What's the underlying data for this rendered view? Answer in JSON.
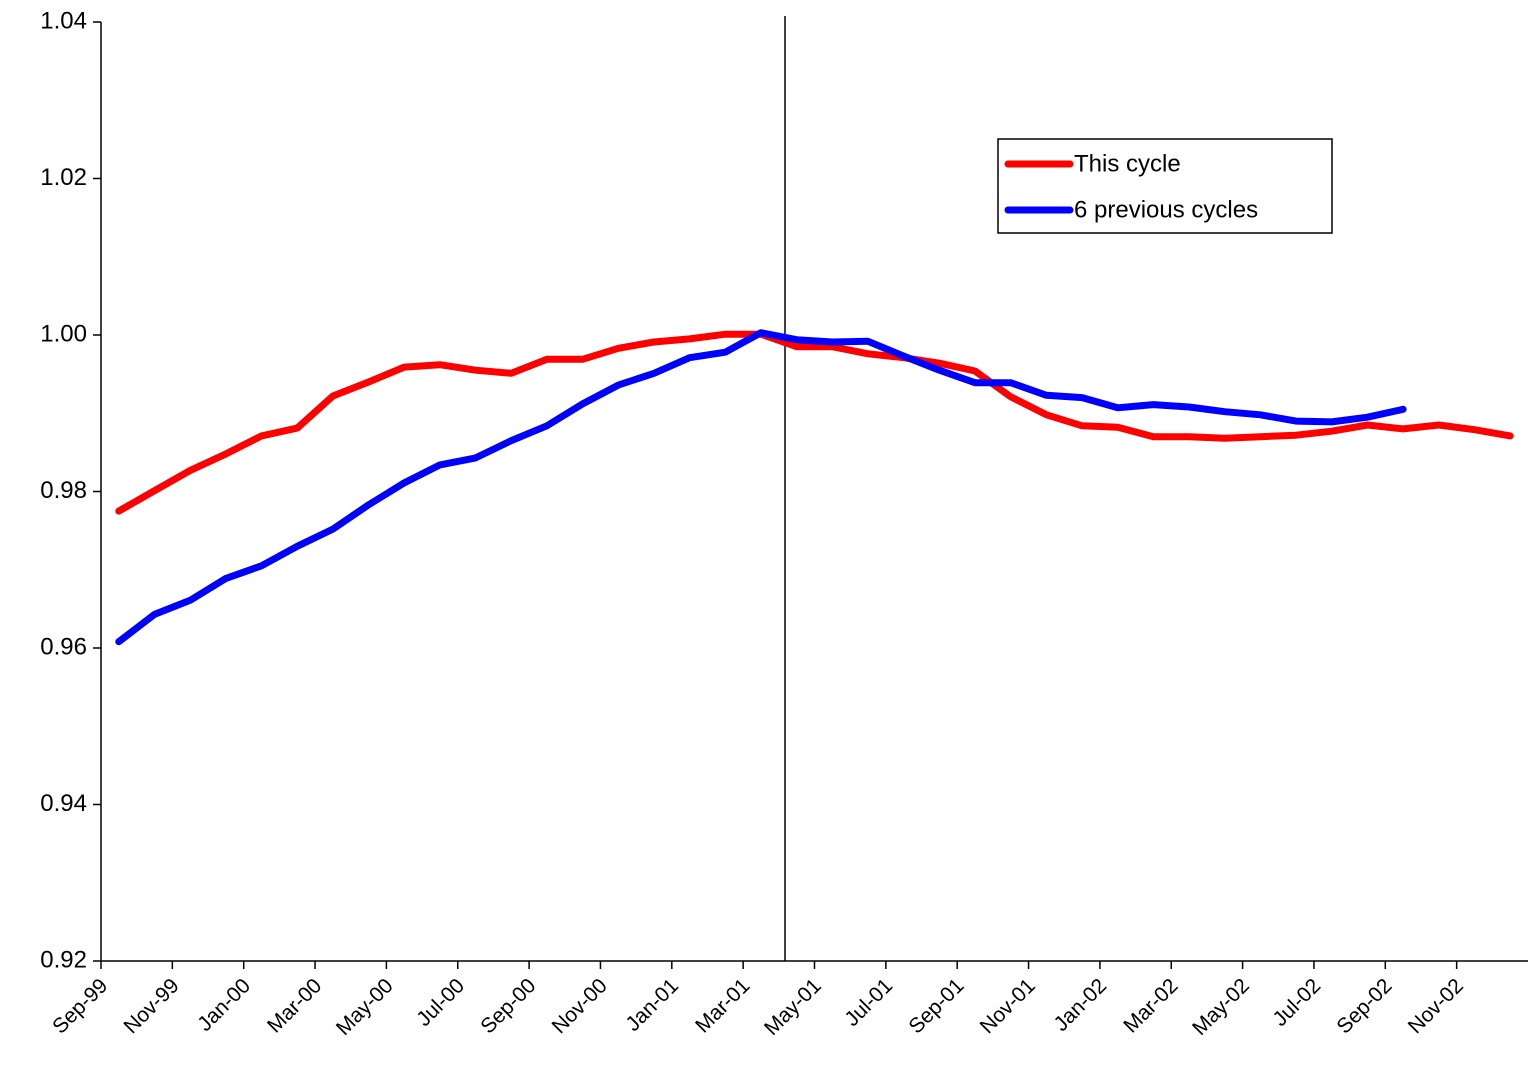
{
  "chart_data": {
    "type": "line",
    "categories": [
      "Sep-99",
      null,
      "Nov-99",
      null,
      "Jan-00",
      null,
      "Mar-00",
      null,
      "May-00",
      null,
      "Jul-00",
      null,
      "Sep-00",
      null,
      "Nov-00",
      null,
      "Jan-01",
      null,
      "Mar-01",
      null,
      "May-01",
      null,
      "Jul-01",
      null,
      "Sep-01",
      null,
      "Nov-01",
      null,
      "Jan-02",
      null,
      "Mar-02",
      null,
      "May-02",
      null,
      "Jul-02",
      null,
      "Sep-02",
      null,
      "Nov-02",
      null
    ],
    "series": [
      {
        "name": "This cycle",
        "color": "#ff0000",
        "values": [
          0.9775,
          0.9801,
          0.9827,
          0.9848,
          0.9871,
          0.9881,
          0.9922,
          0.994,
          0.9959,
          0.9962,
          0.9955,
          0.9951,
          0.9969,
          0.9969,
          0.9983,
          0.9991,
          0.9995,
          1.0001,
          1.0001,
          0.9985,
          0.9985,
          0.9976,
          0.9971,
          0.9964,
          0.9954,
          0.9921,
          0.9898,
          0.9884,
          0.9882,
          0.987,
          0.987,
          0.9868,
          0.987,
          0.9872,
          0.9877,
          0.9885,
          0.988,
          0.9885,
          0.9879,
          0.9871
        ]
      },
      {
        "name": "6 previous cycles",
        "color": "#0000ff",
        "values": [
          0.9608,
          0.9643,
          0.9661,
          0.9689,
          0.9705,
          0.973,
          0.9752,
          0.9783,
          0.9811,
          0.9834,
          0.9843,
          0.9865,
          0.9884,
          0.9912,
          0.9936,
          0.9951,
          0.9971,
          0.9978,
          1.0003,
          0.9994,
          0.9991,
          0.9992,
          0.9973,
          0.9955,
          0.9939,
          0.9939,
          0.9923,
          0.992,
          0.9907,
          0.9911,
          0.9908,
          0.9902,
          0.9898,
          0.989,
          0.9889,
          0.9895,
          0.9905,
          null,
          null,
          null
        ]
      }
    ],
    "ylim": [
      0.92,
      1.04
    ],
    "yticks": [
      {
        "value": 0.92,
        "label": "0.92"
      },
      {
        "value": 0.94,
        "label": "0.94"
      },
      {
        "value": 0.96,
        "label": "0.96"
      },
      {
        "value": 0.98,
        "label": "0.98"
      },
      {
        "value": 1.0,
        "label": "1.00"
      },
      {
        "value": 1.02,
        "label": "1.02"
      },
      {
        "value": 1.04,
        "label": "1.04"
      }
    ],
    "grid": false,
    "legend_position": "upper right"
  }
}
